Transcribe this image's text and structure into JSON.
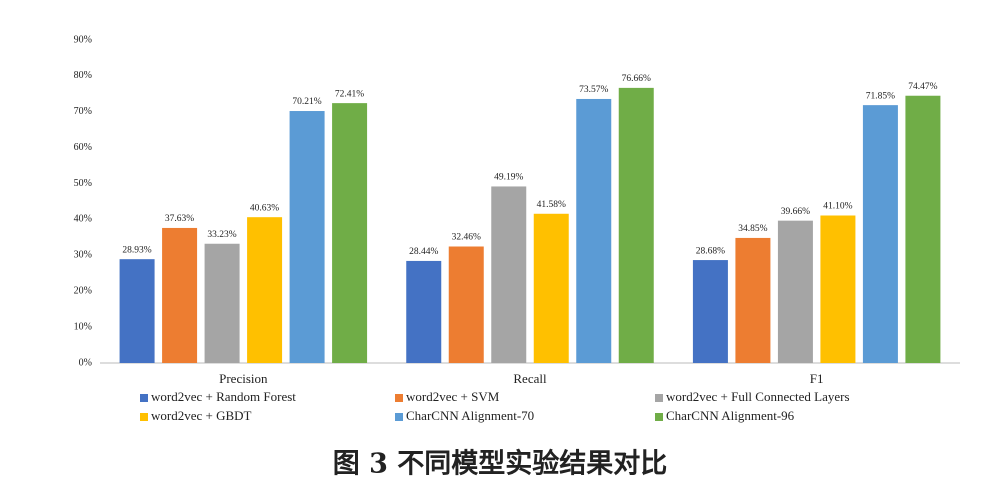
{
  "chart_data": {
    "type": "bar",
    "title": "图 3  不同模型实验结果对比",
    "categories": [
      "Precision",
      "Recall",
      "F1"
    ],
    "series": [
      {
        "name": "word2vec + Random Forest",
        "color": "#4472c4",
        "values": [
          28.93,
          28.44,
          28.68
        ],
        "value_labels": [
          "28.93%",
          "28.44%",
          "28.68%"
        ]
      },
      {
        "name": "word2vec + SVM",
        "color": "#ed7d31",
        "values": [
          37.63,
          32.46,
          34.85
        ],
        "value_labels": [
          "37.63%",
          "32.46%",
          "34.85%"
        ]
      },
      {
        "name": "word2vec + Full Connected Layers",
        "color": "#a5a5a5",
        "values": [
          33.23,
          49.19,
          39.66
        ],
        "value_labels": [
          "33.23%",
          "49.19%",
          "39.66%"
        ]
      },
      {
        "name": "word2vec + GBDT",
        "color": "#ffc000",
        "values": [
          40.63,
          41.58,
          41.1
        ],
        "value_labels": [
          "40.63%",
          "41.58%",
          "41.10%"
        ]
      },
      {
        "name": "CharCNN Alignment-70",
        "color": "#5b9bd5",
        "values": [
          70.21,
          73.57,
          71.85
        ],
        "value_labels": [
          "70.21%",
          "73.57%",
          "71.85%"
        ]
      },
      {
        "name": "CharCNN Alignment-96",
        "color": "#70ad47",
        "values": [
          72.41,
          76.66,
          74.47
        ],
        "value_labels": [
          "72.41%",
          "76.66%",
          "74.47%"
        ]
      }
    ],
    "ylim": [
      0,
      90
    ],
    "yticks": [
      {
        "value": 0,
        "label": "0%"
      },
      {
        "value": 10,
        "label": "10%"
      },
      {
        "value": 20,
        "label": "20%"
      },
      {
        "value": 30,
        "label": "30%"
      },
      {
        "value": 40,
        "label": "40%"
      },
      {
        "value": 50,
        "label": "50%"
      },
      {
        "value": 60,
        "label": "60%"
      },
      {
        "value": 70,
        "label": "70%"
      },
      {
        "value": 80,
        "label": "80%"
      },
      {
        "value": 90,
        "label": "90%"
      }
    ],
    "grid": false
  }
}
